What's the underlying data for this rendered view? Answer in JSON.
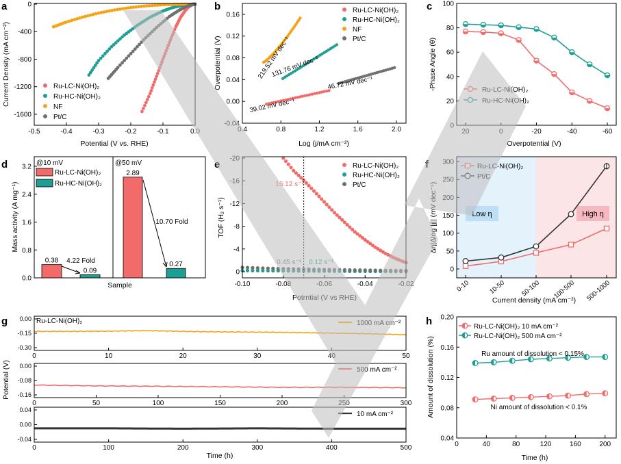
{
  "colors": {
    "red": "#f26b6b",
    "teal": "#1f9e94",
    "orange": "#f5a316",
    "grey": "#6f6f6f",
    "dark": "#333333",
    "bar_red": "#f26b6b",
    "bar_teal": "#1f9e94",
    "watermark": "#bdbdbd"
  },
  "chart_data": [
    {
      "id": "a",
      "panel_label": "a",
      "type": "line",
      "xlabel": "Potential (V vs. RHE)",
      "ylabel": "Current Density (mA cm⁻²)",
      "xlim": [
        -0.5,
        0.0
      ],
      "ylim": [
        -1760,
        0
      ],
      "xticks": [
        -0.5,
        -0.4,
        -0.3,
        -0.2,
        -0.1,
        0.0
      ],
      "yticks": [
        0,
        -400,
        -800,
        -1200,
        -1600
      ],
      "xtick_labels": [
        "-0.5",
        "-0.4",
        "-0.3",
        "-0.2",
        "-0.1",
        "0.0"
      ],
      "ytick_labels": [
        "0",
        "-400",
        "-800",
        "-1200",
        "-1600"
      ],
      "legend": [
        "Ru-LC-Ni(OH)₂",
        "Ru-HC-Ni(OH)₂",
        "NF",
        "Pt/C"
      ],
      "series": [
        {
          "name": "Ru-LC-Ni(OH)₂",
          "color_key": "red",
          "x": [
            -0.165,
            -0.14,
            -0.12,
            -0.1,
            -0.08,
            -0.06,
            -0.045,
            -0.03,
            -0.02,
            -0.01,
            0.0
          ],
          "y": [
            -1560,
            -1300,
            -1050,
            -800,
            -560,
            -330,
            -190,
            -90,
            -40,
            -10,
            0
          ]
        },
        {
          "name": "Ru-HC-Ni(OH)₂",
          "color_key": "teal",
          "x": [
            -0.33,
            -0.3,
            -0.26,
            -0.22,
            -0.18,
            -0.14,
            -0.1,
            -0.07,
            -0.04,
            -0.02,
            0.0
          ],
          "y": [
            -1030,
            -820,
            -620,
            -450,
            -310,
            -190,
            -100,
            -50,
            -18,
            -5,
            0
          ]
        },
        {
          "name": "NF",
          "color_key": "orange",
          "x": [
            -0.44,
            -0.4,
            -0.35,
            -0.3,
            -0.25,
            -0.2,
            -0.15,
            -0.1,
            -0.05,
            0.0
          ],
          "y": [
            -330,
            -260,
            -190,
            -130,
            -85,
            -50,
            -25,
            -10,
            -3,
            0
          ]
        },
        {
          "name": "Pt/C",
          "color_key": "grey",
          "x": [
            -0.27,
            -0.24,
            -0.2,
            -0.16,
            -0.12,
            -0.08,
            -0.05,
            -0.03,
            -0.01,
            0.0
          ],
          "y": [
            -1080,
            -920,
            -720,
            -520,
            -340,
            -180,
            -90,
            -40,
            -8,
            0
          ]
        }
      ]
    },
    {
      "id": "b",
      "panel_label": "b",
      "type": "scatter",
      "xlabel": "Log (j/mA cm⁻²)",
      "ylabel": "Overpotential (V)",
      "xlim": [
        0.4,
        2.1
      ],
      "ylim": [
        -0.04,
        0.18
      ],
      "xticks": [
        0.4,
        0.8,
        1.2,
        1.6,
        2.0
      ],
      "yticks": [
        -0.04,
        0.0,
        0.04,
        0.08,
        0.12,
        0.16
      ],
      "xtick_labels": [
        "0.4",
        "0.8",
        "1.2",
        "1.6",
        "2.0"
      ],
      "ytick_labels": [
        "-0.04",
        "0.00",
        "0.04",
        "0.08",
        "0.12",
        "0.16"
      ],
      "legend": [
        "Ru-LC-Ni(OH)₂",
        "Ru-HC-Ni(OH)₂",
        "NF",
        "Pt/C"
      ],
      "series": [
        {
          "name": "Ru-LC-Ni(OH)₂",
          "color_key": "red",
          "x": [
            0.65,
            1.3
          ],
          "y": [
            -0.005,
            0.02
          ],
          "tafel": "39.02 mV dec⁻¹"
        },
        {
          "name": "Ru-HC-Ni(OH)₂",
          "color_key": "teal",
          "x": [
            0.82,
            1.38
          ],
          "y": [
            0.042,
            0.104
          ],
          "tafel": "131.76 mV dec⁻¹"
        },
        {
          "name": "NF",
          "color_key": "orange",
          "x": [
            0.62,
            1.0
          ],
          "y": [
            0.072,
            0.153
          ],
          "tafel": "219.52 mV dec⁻¹"
        },
        {
          "name": "Pt/C",
          "color_key": "grey",
          "x": [
            1.4,
            1.98
          ],
          "y": [
            0.033,
            0.062
          ],
          "tafel": "46.72 mV dec⁻¹"
        }
      ]
    },
    {
      "id": "c",
      "panel_label": "c",
      "type": "line",
      "xlabel": "Overpotential (V)",
      "ylabel": "-Phase Angle (θ)",
      "xlim": [
        25,
        -65
      ],
      "ylim": [
        0,
        100
      ],
      "xticks": [
        20,
        0,
        -20,
        -40,
        -60
      ],
      "yticks": [
        0,
        20,
        40,
        60,
        80,
        100
      ],
      "xtick_labels": [
        "20",
        "0",
        "-20",
        "-40",
        "-60"
      ],
      "ytick_labels": [
        "0",
        "20",
        "40",
        "60",
        "80",
        "100"
      ],
      "legend": [
        "Ru-LC-Ni(OH)₂",
        "Ru-HC-Ni(OH)₂"
      ],
      "series": [
        {
          "name": "Ru-LC-Ni(OH)₂",
          "color_key": "red",
          "x": [
            20,
            10,
            0,
            -10,
            -20,
            -30,
            -40,
            -50,
            -60
          ],
          "y": [
            77,
            76.5,
            75.5,
            70,
            53,
            42,
            27,
            20,
            14
          ]
        },
        {
          "name": "Ru-HC-Ni(OH)₂",
          "color_key": "teal",
          "x": [
            20,
            10,
            0,
            -10,
            -20,
            -30,
            -40,
            -50,
            -60
          ],
          "y": [
            83,
            82.5,
            82,
            80.5,
            79,
            72,
            60,
            50,
            41
          ]
        }
      ]
    },
    {
      "id": "d",
      "panel_label": "d",
      "type": "bar",
      "xlabel": "Sample",
      "ylabel": "Mass activity (A mg⁻¹)",
      "ylim": [
        0,
        3.2
      ],
      "yticks": [
        0,
        0.8,
        1.6,
        2.4,
        3.2
      ],
      "ytick_labels": [
        "0.0",
        "0.8",
        "1.6",
        "2.4",
        "3.2"
      ],
      "groups": [
        "@10 mV",
        "@50 mV"
      ],
      "series": [
        {
          "name": "Ru-LC-Ni(OH)₂",
          "color_key": "bar_red",
          "values": [
            0.38,
            2.89
          ],
          "labels": [
            "0.38",
            "2.89"
          ]
        },
        {
          "name": "Ru-HC-Ni(OH)₂",
          "color_key": "bar_teal",
          "values": [
            0.09,
            0.27
          ],
          "labels": [
            "0.09",
            "0.27"
          ]
        }
      ],
      "annotations": [
        "4.22 Fold",
        "10.70 Fold"
      ]
    },
    {
      "id": "e",
      "panel_label": "e",
      "type": "scatter",
      "xlabel": "Potrntial (V vs RHE)",
      "ylabel": "TOF (H₂ s⁻¹)",
      "xlim": [
        -0.1,
        -0.02
      ],
      "ylim": [
        0,
        -20
      ],
      "xticks": [
        -0.1,
        -0.08,
        -0.06,
        -0.04,
        -0.02
      ],
      "yticks": [
        0,
        -4,
        -8,
        -12,
        -16,
        -20
      ],
      "xtick_labels": [
        "-0.10",
        "-0.08",
        "-0.06",
        "-0.04",
        "-0.02"
      ],
      "ytick_labels": [
        "0",
        "-4",
        "-8",
        "-12",
        "-16",
        "-20"
      ],
      "legend": [
        "Ru-LC-Ni(OH)₂",
        "Ru-HC-Ni(OH)₂",
        "Pt/C"
      ],
      "marker_x": -0.07,
      "annotations": [
        "16.12 s⁻¹",
        "0.45 s⁻¹",
        "0.12 s⁻¹"
      ],
      "series": [
        {
          "name": "Ru-LC-Ni(OH)₂",
          "color_key": "red",
          "x": [
            -0.08,
            -0.075,
            -0.07,
            -0.065,
            -0.06,
            -0.055,
            -0.05,
            -0.045,
            -0.04,
            -0.035,
            -0.03,
            -0.025,
            -0.02
          ],
          "y": [
            -20,
            -17.8,
            -16.1,
            -14.2,
            -12.3,
            -10.4,
            -8.7,
            -7.0,
            -5.6,
            -4.3,
            -3.2,
            -2.3,
            -1.6
          ]
        },
        {
          "name": "Ru-HC-Ni(OH)₂",
          "color_key": "teal",
          "x": [
            -0.1,
            -0.09,
            -0.08,
            -0.07,
            -0.06,
            -0.05,
            -0.04,
            -0.03,
            -0.02
          ],
          "y": [
            -0.2,
            -0.18,
            -0.15,
            -0.12,
            -0.1,
            -0.08,
            -0.06,
            -0.05,
            -0.04
          ]
        },
        {
          "name": "Pt/C",
          "color_key": "grey",
          "x": [
            -0.1,
            -0.09,
            -0.08,
            -0.07,
            -0.06,
            -0.05,
            -0.04,
            -0.03,
            -0.02
          ],
          "y": [
            -0.75,
            -0.62,
            -0.52,
            -0.45,
            -0.38,
            -0.32,
            -0.27,
            -0.22,
            -0.18
          ]
        }
      ]
    },
    {
      "id": "f",
      "panel_label": "f",
      "type": "line",
      "xlabel": "Current density (mA cm⁻²)",
      "ylabel": "Δη|Δlog |j|| (mV dec⁻¹)",
      "categories": [
        "0-10",
        "10-50",
        "50-100",
        "100-500",
        "500-1000"
      ],
      "ylim": [
        -10,
        300
      ],
      "yticks": [
        0,
        50,
        100,
        150,
        200,
        250,
        300
      ],
      "ytick_labels": [
        "0",
        "50",
        "100",
        "150",
        "200",
        "250",
        "300"
      ],
      "legend": [
        "Ru-LC-Ni(OH)₂",
        "Pt/C"
      ],
      "regions": [
        "Low η",
        "High η"
      ],
      "series": [
        {
          "name": "Ru-LC-Ni(OH)₂",
          "color_key": "red",
          "values": [
            8,
            21,
            45,
            68,
            113
          ]
        },
        {
          "name": "Pt/C",
          "color_key": "dark",
          "values": [
            22,
            32,
            63,
            153,
            287
          ]
        }
      ]
    },
    {
      "id": "g",
      "panel_label": "g",
      "type": "line",
      "xlabel": "Time (h)",
      "ylabel": "Potential (V)",
      "inner_label": "Ru-LC-Ni(OH)₂",
      "subplots": [
        {
          "legend": "1000 mA cm⁻²",
          "color_key": "orange",
          "xlim": [
            0,
            50
          ],
          "ylim": [
            -0.3,
            0.0
          ],
          "xticks": [
            0,
            10,
            20,
            30,
            40,
            50
          ],
          "yticks": [
            0.0,
            -0.15,
            -0.3
          ],
          "xtick_labels": [
            "0",
            "10",
            "20",
            "30",
            "40",
            "50"
          ],
          "ytick_labels": [
            "0.00",
            "-0.15",
            "-0.30"
          ],
          "x": [
            0,
            5,
            10,
            15,
            20,
            25,
            30,
            35,
            40,
            45,
            50
          ],
          "y": [
            -0.13,
            -0.13,
            -0.128,
            -0.122,
            -0.13,
            -0.135,
            -0.138,
            -0.142,
            -0.148,
            -0.155,
            -0.165
          ]
        },
        {
          "legend": "500 mA cm⁻²",
          "color_key": "red",
          "xlim": [
            0,
            300
          ],
          "ylim": [
            -0.16,
            0.0
          ],
          "xticks": [
            0,
            50,
            100,
            150,
            200,
            250,
            300
          ],
          "yticks": [
            0.0,
            -0.08,
            -0.16
          ],
          "xtick_labels": [
            "0",
            "50",
            "100",
            "150",
            "200",
            "250",
            "300"
          ],
          "ytick_labels": [
            "0.00",
            "-0.08",
            "-0.16"
          ],
          "x": [
            0,
            50,
            100,
            150,
            200,
            250,
            300
          ],
          "y": [
            -0.105,
            -0.11,
            -0.112,
            -0.115,
            -0.118,
            -0.118,
            -0.12
          ]
        },
        {
          "legend": "10 mA cm⁻²",
          "color_key": "dark",
          "xlim": [
            0,
            500
          ],
          "ylim": [
            -0.04,
            0.04
          ],
          "xticks": [
            0,
            100,
            200,
            300,
            400,
            500
          ],
          "yticks": [
            0.04,
            0.0,
            -0.04
          ],
          "xtick_labels": [
            "0",
            "100",
            "200",
            "300",
            "400",
            "500"
          ],
          "ytick_labels": [
            "0.04",
            "0.00",
            "-0.04"
          ],
          "x": [
            0,
            100,
            200,
            300,
            400,
            500
          ],
          "y": [
            -0.01,
            -0.01,
            -0.011,
            -0.01,
            -0.011,
            -0.011
          ]
        }
      ]
    },
    {
      "id": "h",
      "panel_label": "h",
      "type": "scatter",
      "xlabel": "Time (h)",
      "ylabel": "Amount of dissolution (%)",
      "xlim": [
        0,
        215
      ],
      "ylim": [
        0.04,
        0.2
      ],
      "xticks": [
        0,
        40,
        80,
        120,
        160,
        200
      ],
      "yticks": [
        0.04,
        0.08,
        0.12,
        0.16,
        0.2
      ],
      "xtick_labels": [
        "0",
        "40",
        "80",
        "120",
        "160",
        "200"
      ],
      "ytick_labels": [
        "0.04",
        "0.08",
        "0.12",
        "0.16",
        "0.20"
      ],
      "legend": [
        "Ru-LC-Ni(OH)₂ 10 mA cm⁻²",
        "Ru-LC-Ni(OH)₂ 500 mA cm⁻²"
      ],
      "annotations": [
        "Ru amount of dissolution  < 0.15%",
        "Ni amount of dissolution  < 0.1%"
      ],
      "series": [
        {
          "name": "Ru-LC-Ni(OH)₂ 10 mA cm⁻²",
          "color_key": "red",
          "x": [
            25,
            50,
            75,
            100,
            125,
            150,
            175,
            200
          ],
          "y": [
            0.091,
            0.092,
            0.093,
            0.094,
            0.095,
            0.096,
            0.098,
            0.099
          ]
        },
        {
          "name": "Ru-LC-Ni(OH)₂ 500 mA cm⁻²",
          "color_key": "teal",
          "x": [
            25,
            50,
            75,
            100,
            125,
            150,
            175,
            200
          ],
          "y": [
            0.139,
            0.14,
            0.142,
            0.144,
            0.145,
            0.146,
            0.147,
            0.147
          ]
        }
      ]
    }
  ]
}
